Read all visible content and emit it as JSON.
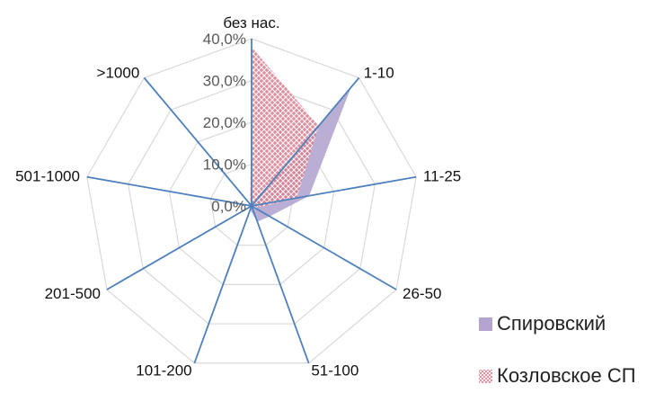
{
  "chart_data": {
    "type": "radar",
    "categories": [
      "без нас.",
      "1-10",
      "11-25",
      "26-50",
      "51-100",
      "101-200",
      "201-500",
      "501-1000",
      ">1000"
    ],
    "tick_labels": [
      "0,0%",
      "10,0%",
      "20,0%",
      "30,0%",
      "40,0%"
    ],
    "rlim": [
      0,
      40
    ],
    "grid": true,
    "legend_position": "bottom-right",
    "series": [
      {
        "name": "Спировский",
        "values": [
          0,
          37,
          14,
          5,
          4,
          1,
          0.5,
          0.5,
          0.5
        ],
        "color": "#b3a5d0",
        "pattern": "solid"
      },
      {
        "name": "Козловское СП",
        "values": [
          38,
          25,
          11,
          1,
          0.5,
          1.5,
          0.5,
          0.5,
          0.5
        ],
        "color": "#d97a8c",
        "pattern": "crosshatch"
      }
    ]
  },
  "colors": {
    "grid": "#d9d9d9",
    "axis": "#4f81bd",
    "series1": "#b3a5d0",
    "series2": "#d97a8c"
  }
}
